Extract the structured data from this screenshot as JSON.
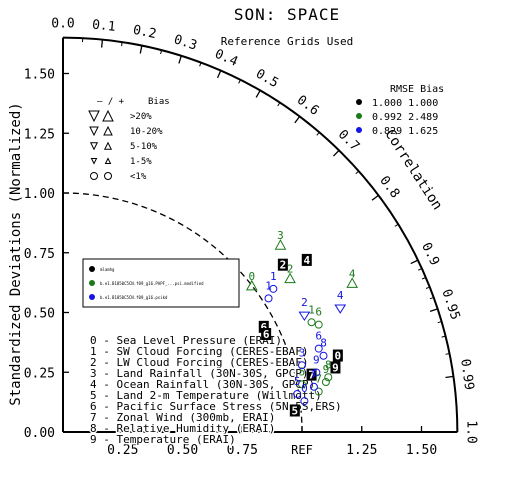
{
  "chart_data": {
    "type": "scatter",
    "title": "SON: SPACE",
    "subtitle": "Reference Grids Used",
    "ylabel": "Standardized Deviations (Normalized)",
    "axis_label_correlation": "Correlation",
    "ref_label": "REF",
    "xlim": [
      0,
      1.65
    ],
    "ylim": [
      0,
      1.65
    ],
    "x_ticks": [
      "0.25",
      "0.50",
      "0.75",
      "REF",
      "1.25",
      "1.50"
    ],
    "x_tick_values": [
      0.25,
      0.5,
      0.75,
      1.0,
      1.25,
      1.5
    ],
    "y_ticks": [
      "0.00",
      "0.25",
      "0.50",
      "0.75",
      "1.00",
      "1.25",
      "1.50"
    ],
    "y_tick_values": [
      0,
      0.25,
      0.5,
      0.75,
      1.0,
      1.25,
      1.5
    ],
    "correlation_ticks": [
      "0.0",
      "0.1",
      "0.2",
      "0.3",
      "0.4",
      "0.5",
      "0.6",
      "0.7",
      "0.8",
      "0.9",
      "0.95",
      "0.99",
      "1.0"
    ],
    "correlation_tick_values": [
      0.0,
      0.1,
      0.2,
      0.3,
      0.4,
      0.5,
      0.6,
      0.7,
      0.8,
      0.9,
      0.95,
      0.99,
      1.0
    ],
    "bias_legend": {
      "header_signs": "– / +",
      "header_bias": "Bias",
      "rows": [
        {
          "label": ">20%",
          "size": 10
        },
        {
          "label": "10-20%",
          "size": 8
        },
        {
          "label": "5-10%",
          "size": 6.5
        },
        {
          "label": "1-5%",
          "size": 5
        },
        {
          "label": "<1%",
          "size": 3.5,
          "circle": true
        }
      ]
    },
    "rmse_header": "RMSE  Bias",
    "series": [
      {
        "label": "mlamhg",
        "color": "#000000",
        "rmse": "1.000",
        "bias": "1.000"
      },
      {
        "label": "b.e1.B1850C5CN.f09_g16.PAPF_...psi.modified",
        "color": "#1a7a1a",
        "rmse": "0.992",
        "bias": "2.489"
      },
      {
        "label": "b.e1.B1850C5CN.f09_g16.psikd",
        "color": "#1414e6",
        "rmse": "0.829",
        "bias": "1.625"
      }
    ],
    "variables": [
      "0 - Sea Level Pressure (ERAI)",
      "1 - SW Cloud Forcing (CERES-EBAF)",
      "2 - LW Cloud Forcing (CERES-EBAF)",
      "3 - Land Rainfall (30N-30S, GPCP)",
      "4 - Ocean Rainfall (30N-30S, GPCP)",
      "5 - Land 2-m Temperature (Willmott)",
      "6 - Pacific Surface Stress (5N-5S,ERS)",
      "7 - Zonal Wind (300mb, ERAI)",
      "8 - Relative Humidity (ERAI)",
      "9 - Temperature (ERAI)"
    ],
    "points": [
      {
        "series": 0,
        "var": "0",
        "x": 1.15,
        "y": 0.32
      },
      {
        "series": 0,
        "var": "2",
        "x": 0.92,
        "y": 0.7
      },
      {
        "series": 0,
        "var": "4",
        "x": 1.02,
        "y": 0.72
      },
      {
        "series": 0,
        "var": "5",
        "x": 0.97,
        "y": 0.09
      },
      {
        "series": 0,
        "var": "6",
        "x": 0.84,
        "y": 0.44
      },
      {
        "series": 0,
        "var": "6",
        "x": 0.85,
        "y": 0.41
      },
      {
        "series": 0,
        "var": "7",
        "x": 1.04,
        "y": 0.24
      },
      {
        "series": 0,
        "var": "9",
        "x": 1.14,
        "y": 0.27
      },
      {
        "series": 1,
        "var": "3",
        "x": 0.91,
        "y": 0.79,
        "marker": "triangle-up"
      },
      {
        "series": 1,
        "var": "4",
        "x": 1.21,
        "y": 0.63,
        "marker": "triangle-up"
      },
      {
        "series": 1,
        "var": "0",
        "x": 0.79,
        "y": 0.62,
        "marker": "triangle-up"
      },
      {
        "series": 1,
        "var": "2",
        "x": 0.95,
        "y": 0.65,
        "marker": "triangle-up"
      },
      {
        "series": 1,
        "var": "6",
        "x": 1.07,
        "y": 0.47,
        "marker": "circle"
      },
      {
        "series": 1,
        "var": "1",
        "x": 1.04,
        "y": 0.48,
        "marker": "circle"
      },
      {
        "series": 1,
        "var": "8",
        "x": 1.11,
        "y": 0.25,
        "marker": "circle"
      },
      {
        "series": 1,
        "var": "5",
        "x": 1.0,
        "y": 0.22,
        "marker": "circle"
      },
      {
        "series": 1,
        "var": "9",
        "x": 1.1,
        "y": 0.23,
        "marker": "circle"
      },
      {
        "series": 1,
        "var": "7",
        "x": 1.07,
        "y": 0.19,
        "marker": "circle"
      },
      {
        "series": 2,
        "var": "1",
        "x": 0.88,
        "y": 0.62,
        "marker": "circle"
      },
      {
        "series": 2,
        "var": "1",
        "x": 0.86,
        "y": 0.58,
        "marker": "circle"
      },
      {
        "series": 2,
        "var": "2",
        "x": 1.01,
        "y": 0.51,
        "marker": "triangle-down"
      },
      {
        "series": 2,
        "var": "4",
        "x": 1.16,
        "y": 0.54,
        "marker": "triangle-down"
      },
      {
        "series": 2,
        "var": "6",
        "x": 1.07,
        "y": 0.37,
        "marker": "circle"
      },
      {
        "series": 2,
        "var": "8",
        "x": 1.09,
        "y": 0.34,
        "marker": "circle"
      },
      {
        "series": 2,
        "var": "3",
        "x": 1.0,
        "y": 0.3,
        "marker": "circle"
      },
      {
        "series": 2,
        "var": "9",
        "x": 1.06,
        "y": 0.27,
        "marker": "circle"
      },
      {
        "series": 2,
        "var": "7",
        "x": 1.05,
        "y": 0.21,
        "marker": "circle"
      },
      {
        "series": 2,
        "var": "5",
        "x": 0.98,
        "y": 0.18,
        "marker": "circle"
      },
      {
        "series": 2,
        "var": "0",
        "x": 1.01,
        "y": 0.15,
        "marker": "circle"
      }
    ]
  }
}
